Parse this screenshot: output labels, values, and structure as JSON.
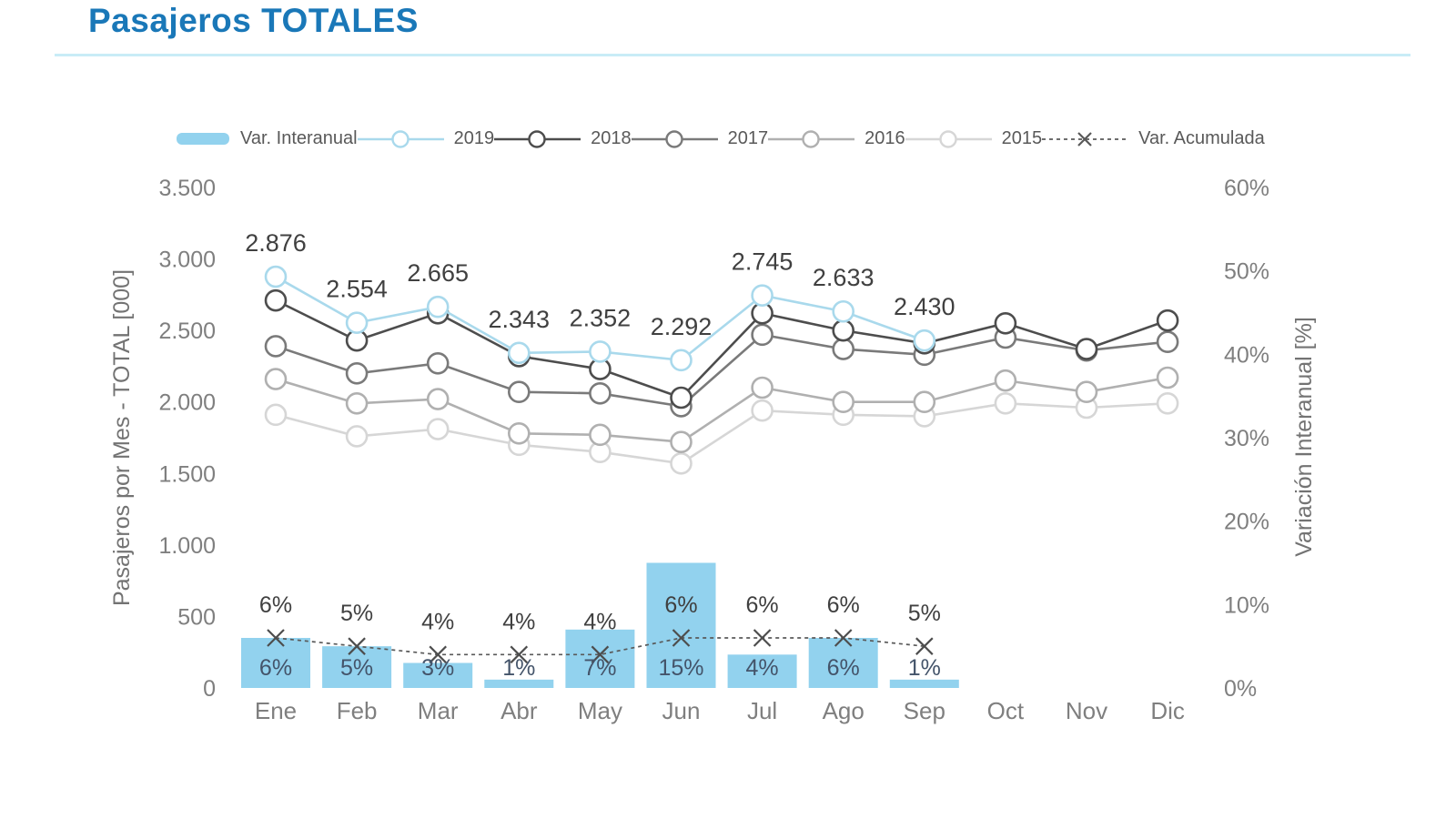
{
  "page": {
    "title": "Pasajeros TOTALES"
  },
  "legend": [
    {
      "label": "Var. Interanual",
      "type": "bar",
      "color": "#92d2ee",
      "icon": "bar-swatch"
    },
    {
      "label": "2019",
      "type": "line-circle",
      "color": "#a9d9ec",
      "icon": "line-circle-marker"
    },
    {
      "label": "2018",
      "type": "line-circle",
      "color": "#4d4d4d",
      "icon": "line-circle-marker"
    },
    {
      "label": "2017",
      "type": "line-circle",
      "color": "#7a7a7a",
      "icon": "line-circle-marker"
    },
    {
      "label": "2016",
      "type": "line-circle",
      "color": "#b0b0b0",
      "icon": "line-circle-marker"
    },
    {
      "label": "2015",
      "type": "line-circle",
      "color": "#d6d6d6",
      "icon": "line-circle-marker"
    },
    {
      "label": "Var. Acumulada",
      "type": "dashed-x",
      "color": "#595959",
      "icon": "dashed-x-marker"
    }
  ],
  "chart_data": {
    "type": "combo-bar-line",
    "title": "Pasajeros TOTALES",
    "categories": [
      "Ene",
      "Feb",
      "Mar",
      "Abr",
      "May",
      "Jun",
      "Jul",
      "Ago",
      "Sep",
      "Oct",
      "Nov",
      "Dic"
    ],
    "left_axis": {
      "label": "Pasajeros por Mes - TOTAL [000]",
      "tick_labels": [
        "0",
        "500",
        "1.000",
        "1.500",
        "2.000",
        "2.500",
        "3.000",
        "3.500"
      ],
      "tick_values": [
        0,
        500,
        1000,
        1500,
        2000,
        2500,
        3000,
        3500
      ],
      "min": 0,
      "max": 3500
    },
    "right_axis": {
      "label": "Variación Interanual [%]",
      "tick_labels": [
        "0%",
        "10%",
        "20%",
        "30%",
        "40%",
        "50%",
        "60%"
      ],
      "tick_values": [
        0,
        10,
        20,
        30,
        40,
        50,
        60
      ],
      "min": 0,
      "max": 60
    },
    "bars": {
      "name": "Var. Interanual",
      "axis": "right",
      "color": "#92d2ee",
      "values_pct": [
        6,
        5,
        3,
        1,
        7,
        15,
        4,
        6,
        1,
        null,
        null,
        null
      ],
      "labels": [
        "6%",
        "5%",
        "3%",
        "1%",
        "7%",
        "15%",
        "4%",
        "6%",
        "1%"
      ]
    },
    "acumulada": {
      "name": "Var. Acumulada",
      "axis": "right",
      "color": "#595959",
      "values_pct": [
        6,
        5,
        4,
        4,
        4,
        6,
        6,
        6,
        5,
        null,
        null,
        null
      ],
      "labels": [
        "6%",
        "5%",
        "4%",
        "4%",
        "4%",
        "6%",
        "6%",
        "6%",
        "5%"
      ]
    },
    "series": [
      {
        "name": "2015",
        "color": "#d6d6d6",
        "values": [
          1910,
          1760,
          1810,
          1700,
          1650,
          1570,
          1940,
          1910,
          1900,
          1990,
          1960,
          1990
        ]
      },
      {
        "name": "2016",
        "color": "#b0b0b0",
        "values": [
          2160,
          1990,
          2020,
          1780,
          1770,
          1720,
          2100,
          2000,
          2000,
          2150,
          2070,
          2170
        ]
      },
      {
        "name": "2017",
        "color": "#7a7a7a",
        "values": [
          2390,
          2200,
          2270,
          2070,
          2060,
          1970,
          2470,
          2370,
          2330,
          2450,
          2360,
          2420
        ]
      },
      {
        "name": "2018",
        "color": "#4d4d4d",
        "values": [
          2710,
          2430,
          2620,
          2320,
          2230,
          2030,
          2620,
          2500,
          2410,
          2550,
          2370,
          2570
        ]
      },
      {
        "name": "2019",
        "color": "#a9d9ec",
        "values": [
          2876,
          2554,
          2665,
          2343,
          2352,
          2292,
          2745,
          2633,
          2430,
          null,
          null,
          null
        ],
        "point_labels": [
          "2.876",
          "2.554",
          "2.665",
          "2.343",
          "2.352",
          "2.292",
          "2.745",
          "2.633",
          "2.430"
        ]
      }
    ],
    "grid": false,
    "legend_position": "top"
  }
}
